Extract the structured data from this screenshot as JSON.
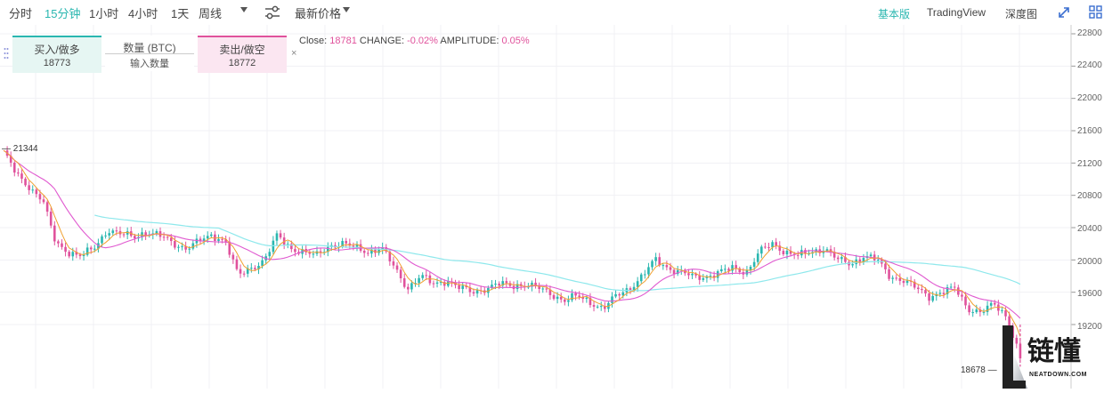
{
  "toolbar": {
    "intervals": [
      "分时",
      "15分钟",
      "1小时",
      "4小时",
      "1天",
      "周线"
    ],
    "active_interval": "15分钟",
    "price_type": "最新价格",
    "views": [
      "基本版",
      "TradingView",
      "深度图"
    ],
    "active_view": "基本版"
  },
  "trade_panel": {
    "buy_label": "买入/做多",
    "buy_price": "18773",
    "quantity_label": "数量 (BTC)",
    "quantity_placeholder": "输入数量",
    "sell_label": "卖出/做空",
    "sell_price": "18772",
    "close_symbol": "×"
  },
  "info_bar": {
    "close_label": "Close:",
    "close_value": "18781",
    "change_label": "CHANGE:",
    "change_value": "-0.02%",
    "amplitude_label": "AMPLITUDE:",
    "amplitude_value": "0.05%"
  },
  "price_axis": {
    "labels": [
      "22800",
      "22400",
      "22000",
      "21600",
      "21200",
      "20800",
      "20400",
      "20000",
      "19600",
      "19200"
    ],
    "max_label": "21344",
    "min_label": "18678"
  },
  "watermark": {
    "cn": "链懂",
    "en": "NEATDOWN.COM"
  },
  "chart_data": {
    "type": "line",
    "instrument": "BTC",
    "interval": "15分钟",
    "y_axis_ticks": [
      22800,
      22400,
      22000,
      21600,
      21200,
      20800,
      20400,
      20000,
      19600,
      19200
    ],
    "high_marker": 21344,
    "low_marker": 18678,
    "last_close": 18781,
    "colors": {
      "up": "#2ab7b0",
      "down": "#e0529c",
      "ma_short": "#f0a030",
      "ma_mid": "#e05ad0",
      "ma_long": "#8ee8ec"
    },
    "series": [
      {
        "values": [
          21344,
          21050,
          20900,
          20750,
          20200,
          20100,
          20050,
          20150,
          20380,
          20320,
          20280,
          20350,
          20300,
          20200,
          20150,
          20230,
          20300,
          20250,
          19800,
          19900,
          20000,
          20300,
          20150,
          20100,
          20050,
          20180,
          20200,
          20150,
          20100,
          20150,
          19900,
          19650,
          19800,
          19700,
          19750,
          19650,
          19600,
          19650,
          19700,
          19680,
          19700,
          19650,
          19580,
          19500,
          19550,
          19480,
          19400,
          19550,
          19650,
          19800,
          20000,
          19900,
          19850,
          19780,
          19800,
          19850,
          19900,
          19850,
          20100,
          20200,
          20100,
          20050,
          20100,
          20150,
          20000,
          19950,
          20050,
          20000,
          19800,
          19750,
          19650,
          19550,
          19600,
          19650,
          19400,
          19350,
          19450,
          19300,
          18780
        ]
      }
    ]
  }
}
